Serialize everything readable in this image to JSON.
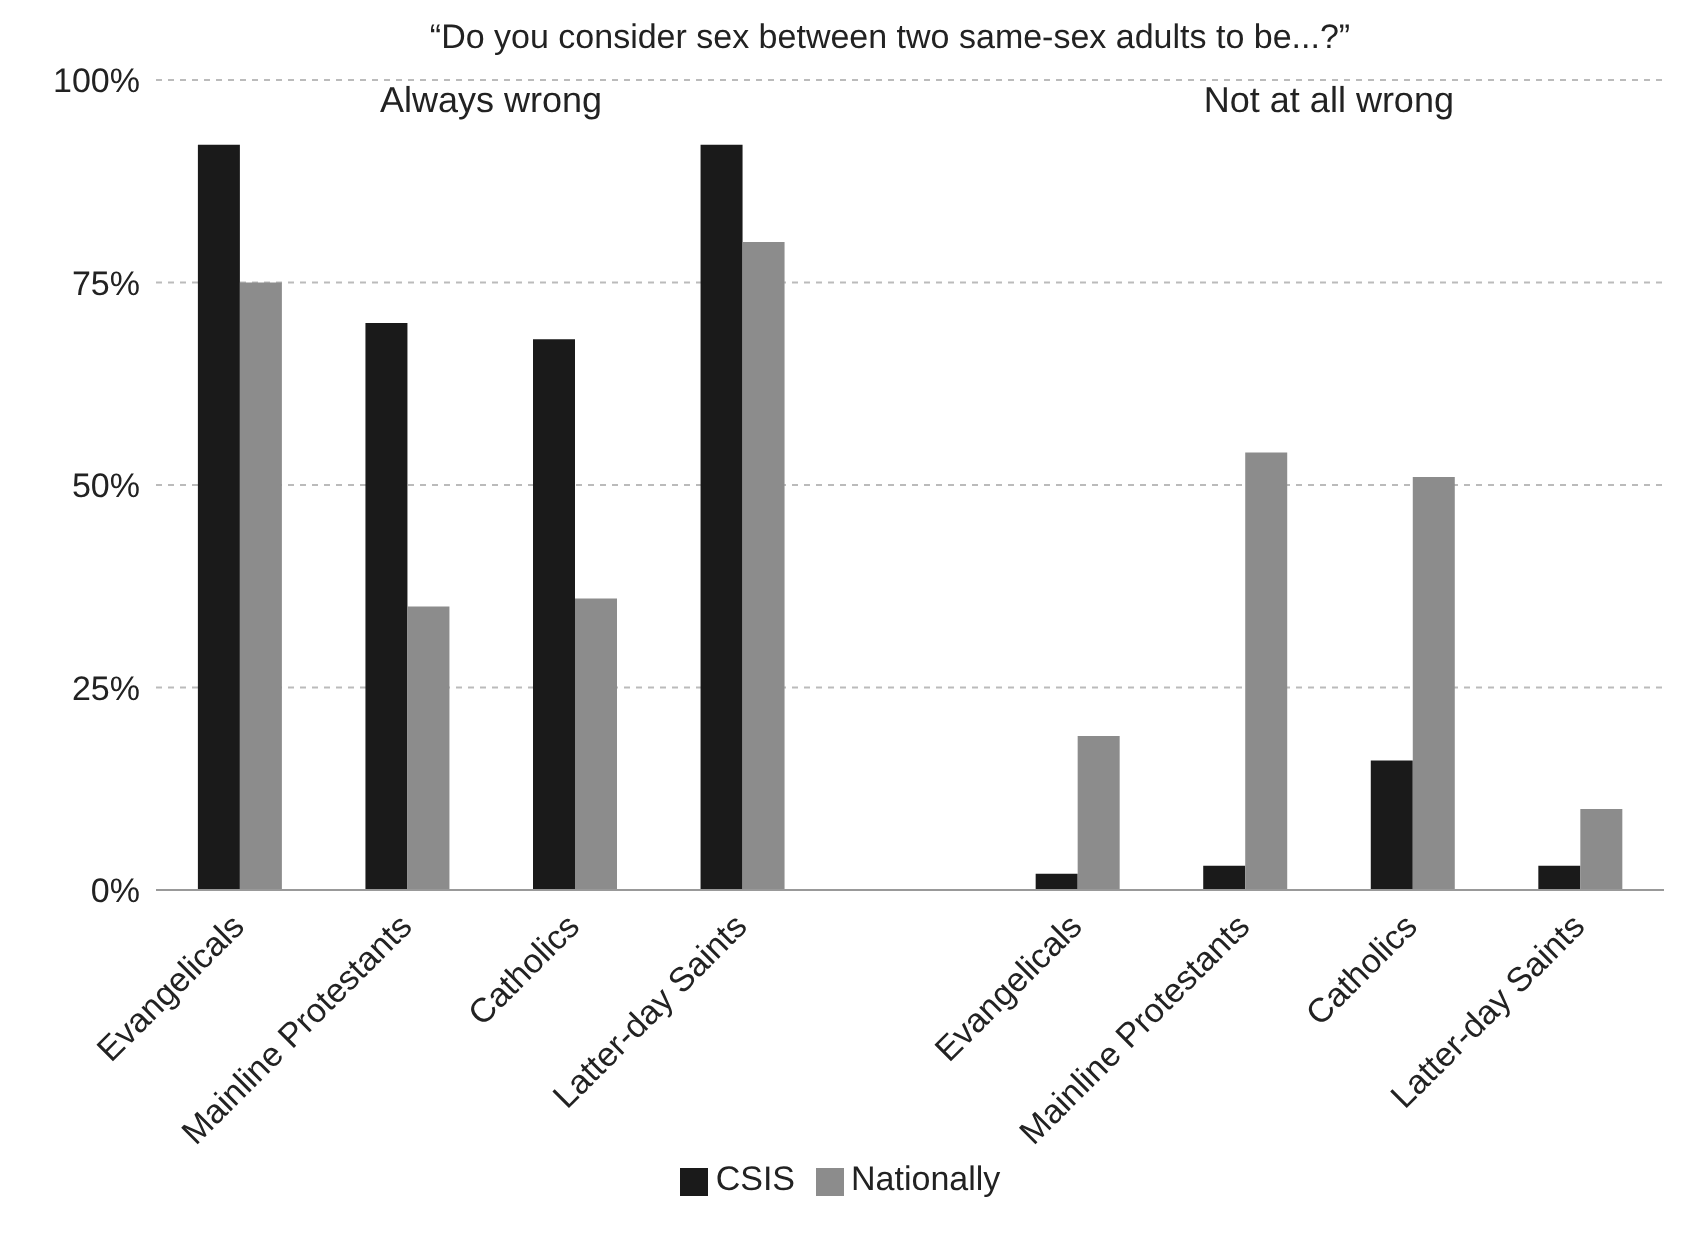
{
  "chart_data": {
    "type": "bar",
    "title": "“Do you consider sex between two same-sex adults to be...?”",
    "categories": [
      "Evangelicals",
      "Mainline Protestants",
      "Catholics",
      "Latter-day Saints",
      null,
      "Evangelicals",
      "Mainline Protestants",
      "Catholics",
      "Latter-day Saints"
    ],
    "series": [
      {
        "name": "CSIS",
        "color": "#1a1a1a",
        "values": [
          92,
          70,
          68,
          92,
          null,
          2,
          3,
          16,
          3
        ]
      },
      {
        "name": "Nationally",
        "color": "#8c8c8c",
        "values": [
          75,
          35,
          36,
          80,
          null,
          19,
          54,
          51,
          10
        ]
      }
    ],
    "annotations": [
      "Always wrong",
      "Not at all wrong"
    ],
    "ylim": [
      0,
      100
    ],
    "yticks": [
      {
        "value": 0,
        "label": "0%"
      },
      {
        "value": 25,
        "label": "25%"
      },
      {
        "value": 50,
        "label": "50%"
      },
      {
        "value": 75,
        "label": "75%"
      },
      {
        "value": 100,
        "label": "100%"
      }
    ],
    "grid": "y",
    "legend": "bottom"
  }
}
